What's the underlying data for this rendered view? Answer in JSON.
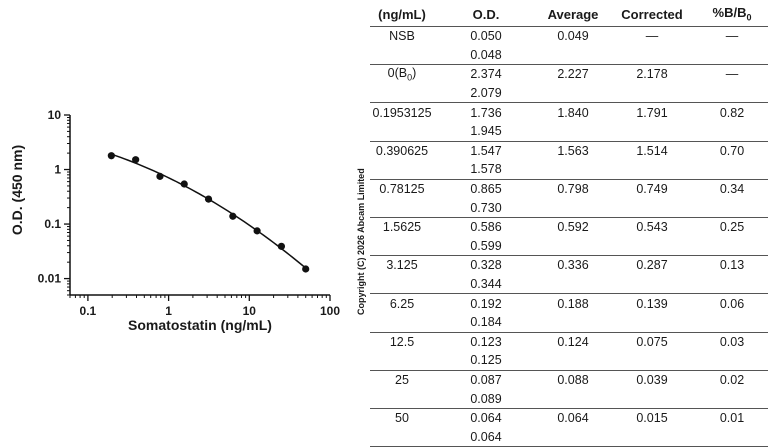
{
  "chart_data": {
    "type": "scatter",
    "xlabel": "Somatostatin (ng/mL)",
    "ylabel": "O.D. (450 nm)",
    "xscale": "log",
    "yscale": "log",
    "xlim": [
      0.06,
      100
    ],
    "ylim": [
      0.005,
      10
    ],
    "xticks": [
      "0.1",
      "1",
      "10",
      "100"
    ],
    "yticks": [
      "10",
      "1",
      "0.1",
      "0.01"
    ],
    "series": [
      {
        "x": [
          0.1953125,
          0.390625,
          0.78125,
          1.5625,
          3.125,
          6.25,
          12.5,
          25,
          50
        ],
        "y": [
          1.791,
          1.514,
          0.749,
          0.543,
          0.287,
          0.139,
          0.075,
          0.039,
          0.015
        ]
      }
    ],
    "grid": false,
    "fit_line": true
  },
  "copyright": "Copyright (C) 2026 Abcam Limited",
  "table": {
    "headers": {
      "conc": "(ng/mL)",
      "od": "O.D.",
      "avg": "Average",
      "corr": "Corrected",
      "pct_main": "%B/B",
      "pct_sub": "0"
    },
    "rows": [
      {
        "conc": "NSB",
        "od1": "0.050",
        "od2": "0.048",
        "avg": "0.049",
        "corr": "—",
        "pct": "—"
      },
      {
        "conc_main": "0(B",
        "conc_sub": "0",
        "conc_tail": ")",
        "od1": "2.374",
        "od2": "2.079",
        "avg": "2.227",
        "corr": "2.178",
        "pct": "—"
      },
      {
        "conc": "0.1953125",
        "od1": "1.736",
        "od2": "1.945",
        "avg": "1.840",
        "corr": "1.791",
        "pct": "0.82"
      },
      {
        "conc": "0.390625",
        "od1": "1.547",
        "od2": "1.578",
        "avg": "1.563",
        "corr": "1.514",
        "pct": "0.70"
      },
      {
        "conc": "0.78125",
        "od1": "0.865",
        "od2": "0.730",
        "avg": "0.798",
        "corr": "0.749",
        "pct": "0.34"
      },
      {
        "conc": "1.5625",
        "od1": "0.586",
        "od2": "0.599",
        "avg": "0.592",
        "corr": "0.543",
        "pct": "0.25"
      },
      {
        "conc": "3.125",
        "od1": "0.328",
        "od2": "0.344",
        "avg": "0.336",
        "corr": "0.287",
        "pct": "0.13"
      },
      {
        "conc": "6.25",
        "od1": "0.192",
        "od2": "0.184",
        "avg": "0.188",
        "corr": "0.139",
        "pct": "0.06"
      },
      {
        "conc": "12.5",
        "od1": "0.123",
        "od2": "0.125",
        "avg": "0.124",
        "corr": "0.075",
        "pct": "0.03"
      },
      {
        "conc": "25",
        "od1": "0.087",
        "od2": "0.089",
        "avg": "0.088",
        "corr": "0.039",
        "pct": "0.02"
      },
      {
        "conc": "50",
        "od1": "0.064",
        "od2": "0.064",
        "avg": "0.064",
        "corr": "0.015",
        "pct": "0.01"
      }
    ]
  }
}
